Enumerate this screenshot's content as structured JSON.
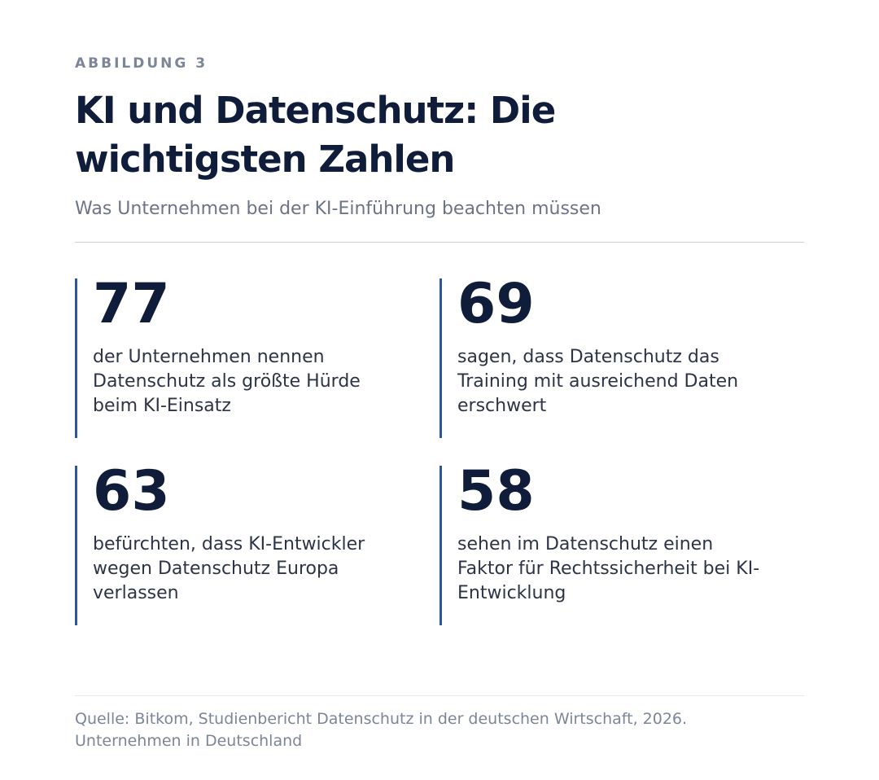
{
  "figure": {
    "eyebrow": "ABBILDUNG 3",
    "title": "KI und Datenschutz: Die wichtigsten Zahlen",
    "subtitle": "Was Unternehmen bei der KI-Einführung beachten müssen"
  },
  "stats": [
    {
      "value": "77",
      "text": "der Unternehmen nennen Datenschutz als größte Hürde beim KI-Einsatz"
    },
    {
      "value": "69",
      "text": "sagen, dass Datenschutz das Training mit ausreichend Daten erschwert"
    },
    {
      "value": "63",
      "text": "befürchten, dass KI-Entwickler wegen Datenschutz Europa verlassen"
    },
    {
      "value": "58",
      "text": "sehen im Datenschutz einen Faktor für Rechtssicherheit bei KI-Entwicklung"
    }
  ],
  "source": {
    "line1": "Quelle: Bitkom, Studienbericht Datenschutz in der deutschen Wirtschaft, 2026.",
    "line2": "Unternehmen in Deutschland"
  },
  "colors": {
    "accent": "#2f5794",
    "heading": "#0f1d3a",
    "muted": "#7b8699"
  }
}
